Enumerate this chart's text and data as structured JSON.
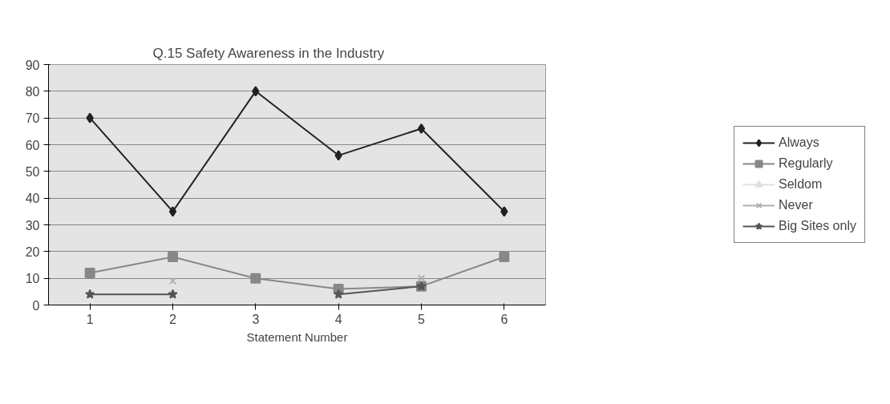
{
  "chart_data": {
    "type": "line",
    "title": "Q.15 Safety Awareness in the Industry",
    "xlabel": "Statement Number",
    "x": [
      1,
      2,
      3,
      4,
      5,
      6
    ],
    "xlim": [
      0.5,
      6.5
    ],
    "xticks": [
      1,
      2,
      3,
      4,
      5,
      6
    ],
    "ylim": [
      0,
      90
    ],
    "yticks": [
      0,
      10,
      20,
      30,
      40,
      50,
      60,
      70,
      80,
      90
    ],
    "grid": "y",
    "legend": "right",
    "series": [
      {
        "name": "Always",
        "color": "#222222",
        "marker": "diamond",
        "values": [
          70,
          35,
          80,
          56,
          66,
          35
        ]
      },
      {
        "name": "Regularly",
        "color": "#888888",
        "marker": "square",
        "values": [
          12,
          18,
          10,
          6,
          7,
          18
        ]
      },
      {
        "name": "Seldom",
        "color": "#e0e0e0",
        "marker": "triangle",
        "values": [
          null,
          null,
          null,
          null,
          null,
          null
        ]
      },
      {
        "name": "Never",
        "color": "#b0b0b0",
        "marker": "cross",
        "values": [
          null,
          9,
          null,
          null,
          10,
          null
        ]
      },
      {
        "name": "Big Sites only",
        "color": "#555555",
        "marker": "star",
        "values": [
          4,
          4,
          null,
          4,
          7,
          null
        ]
      }
    ]
  }
}
